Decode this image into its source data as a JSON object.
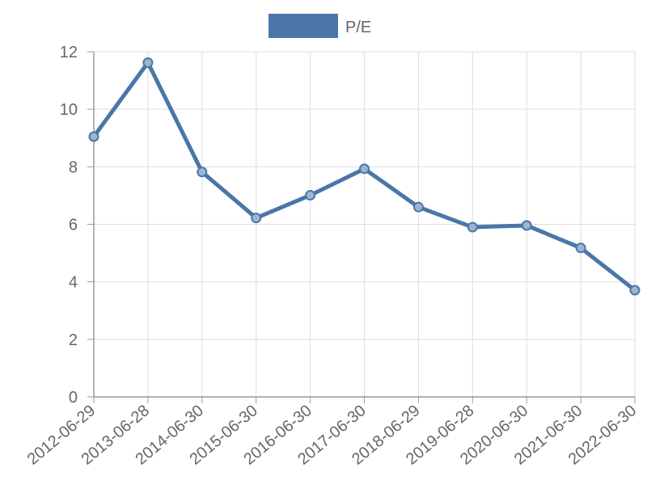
{
  "chart_data": {
    "type": "line",
    "title": "",
    "xlabel": "",
    "ylabel": "",
    "categories": [
      "2012-06-29",
      "2013-06-28",
      "2014-06-30",
      "2015-06-30",
      "2016-06-30",
      "2017-06-30",
      "2018-06-29",
      "2019-06-28",
      "2020-06-30",
      "2021-06-30",
      "2022-06-30"
    ],
    "series": [
      {
        "name": "P/E",
        "values": [
          9.05,
          11.62,
          7.82,
          6.22,
          7.01,
          7.93,
          6.6,
          5.9,
          5.96,
          5.18,
          3.71
        ],
        "color": "#4a76a8"
      }
    ],
    "ylim": [
      0,
      12
    ],
    "yticks": [
      "0",
      "2",
      "4",
      "6",
      "8",
      "10",
      "12"
    ],
    "grid": true,
    "legend_position": "top-center"
  }
}
